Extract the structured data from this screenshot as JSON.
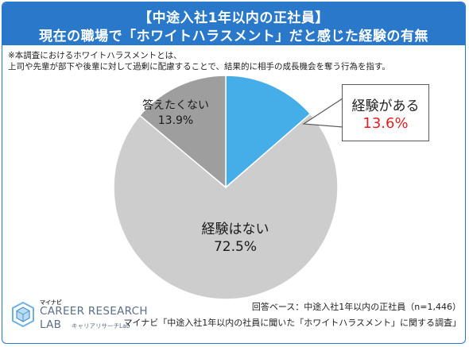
{
  "title": {
    "line1": "【中途入社1年以内の正社員】",
    "line2": "現在の職場で「ホワイトハラスメント」だと感じた経験の有無"
  },
  "note": {
    "line1": "※本調査におけるホワイトハラスメントとは、",
    "line2": "上司や先輩が部下や後輩に対して過剰に配慮することで、結果的に相手の成長機会を奪う行為を指す。"
  },
  "chart_data": {
    "type": "pie",
    "title": "【中途入社1年以内の正社員】現在の職場で「ホワイトハラスメント」だと感じた経験の有無",
    "slices": [
      {
        "label": "経験がある",
        "value": 13.6,
        "display": "13.6%",
        "color": "#45aee8"
      },
      {
        "label": "経験はない",
        "value": 72.5,
        "display": "72.5%",
        "color": "#cdcdcd"
      },
      {
        "label": "答えたくない",
        "value": 13.9,
        "display": "13.9%",
        "color": "#9e9e9e"
      }
    ],
    "start": "12 o'clock",
    "direction": "clockwise",
    "highlight": "経験がある",
    "highlight_value_color": "#e02020"
  },
  "footer": {
    "base": "回答ベース：中途入社1年以内の正社員（n=1,446）",
    "source": "マイナビ「中途入社1年以内の社員に聞いた「ホワイトハラスメント」に関する調査」"
  },
  "logo": {
    "top": "マイナビ",
    "main": "CAREER RESEARCH",
    "lab": "LAB",
    "sub": "キャリアリサーチLab"
  }
}
